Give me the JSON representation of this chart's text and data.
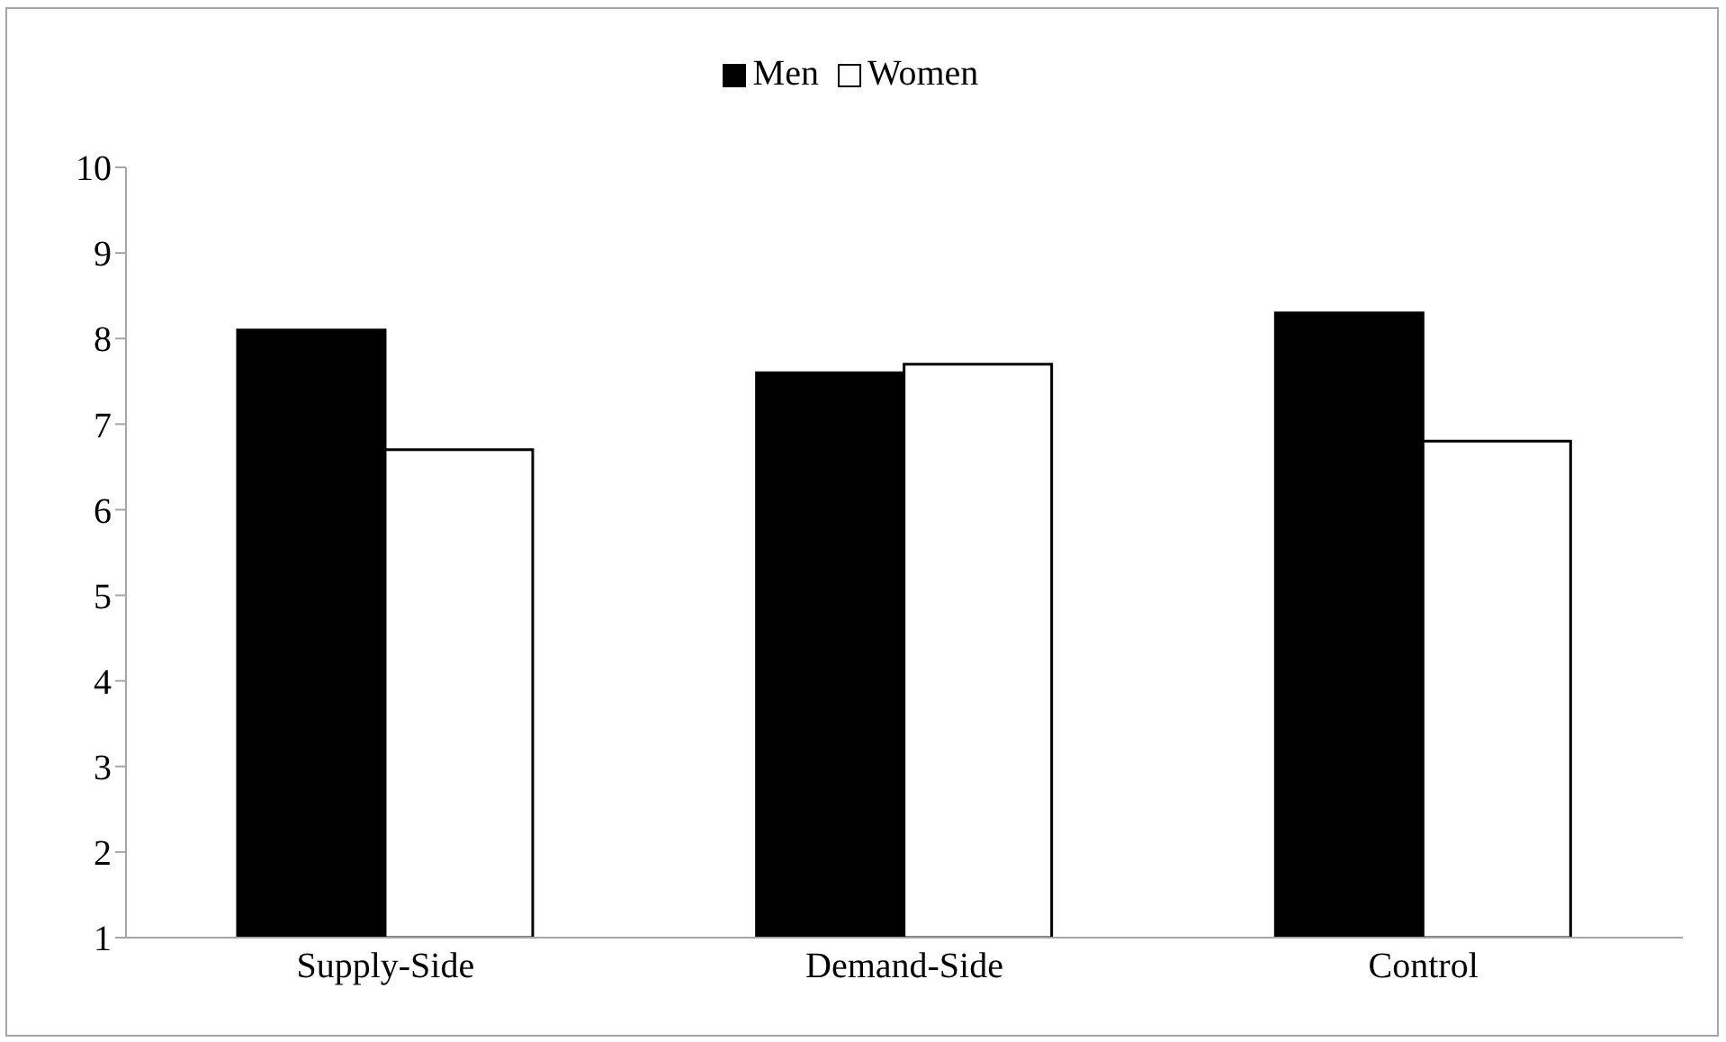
{
  "chart_data": {
    "type": "bar",
    "categories": [
      "Supply-Side",
      "Demand-Side",
      "Control"
    ],
    "series": [
      {
        "name": "Men",
        "color": "#000000",
        "values": [
          8.1,
          7.6,
          8.3
        ]
      },
      {
        "name": "Women",
        "color": "#ffffff",
        "values": [
          6.7,
          7.7,
          6.8
        ]
      }
    ],
    "ylim": [
      1,
      10
    ],
    "yticks": [
      1,
      2,
      3,
      4,
      5,
      6,
      7,
      8,
      9,
      10
    ],
    "legend": "top"
  }
}
